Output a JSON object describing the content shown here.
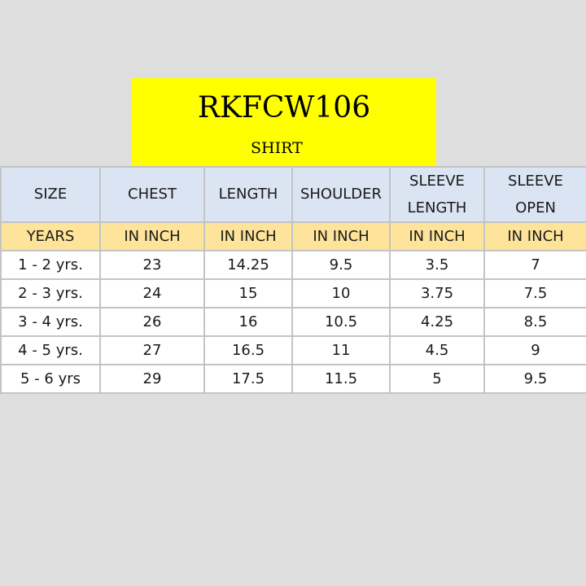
{
  "title": {
    "code": "RKFCW106",
    "subtitle": "SHIRT"
  },
  "table": {
    "headers": [
      {
        "line1": "SIZE",
        "line2": ""
      },
      {
        "line1": "CHEST",
        "line2": ""
      },
      {
        "line1": "LENGTH",
        "line2": ""
      },
      {
        "line1": "SHOULDER",
        "line2": ""
      },
      {
        "line1": "SLEEVE",
        "line2": "LENGTH"
      },
      {
        "line1": "SLEEVE",
        "line2": "OPEN"
      }
    ],
    "units": [
      "YEARS",
      "IN INCH",
      "IN INCH",
      "IN INCH",
      "IN INCH",
      "IN INCH"
    ],
    "rows": [
      [
        "1 - 2 yrs.",
        "23",
        "14.25",
        "9.5",
        "3.5",
        "7"
      ],
      [
        "2 - 3 yrs.",
        "24",
        "15",
        "10",
        "3.75",
        "7.5"
      ],
      [
        "3 - 4 yrs.",
        "26",
        "16",
        "10.5",
        "4.25",
        "8.5"
      ],
      [
        "4 - 5 yrs.",
        "27",
        "16.5",
        "11",
        "4.5",
        "9"
      ],
      [
        "5 - 6 yrs",
        "29",
        "17.5",
        "11.5",
        "5",
        "9.5"
      ]
    ]
  },
  "colors": {
    "title_background": "#ffff00",
    "header_background": "#dbe4f3",
    "unit_background": "#fde49a",
    "page_background": "#dedede"
  }
}
